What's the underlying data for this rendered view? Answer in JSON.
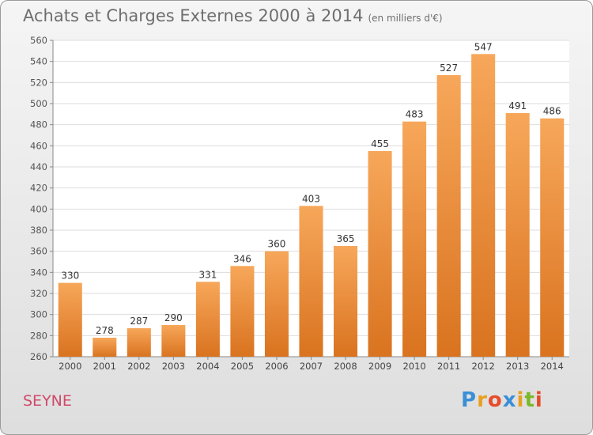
{
  "chart_data": {
    "type": "bar",
    "title": "Achats et Charges Externes 2000 à 2014",
    "subtitle": "(en milliers d'€)",
    "categories": [
      "2000",
      "2001",
      "2002",
      "2003",
      "2004",
      "2005",
      "2006",
      "2007",
      "2008",
      "2009",
      "2010",
      "2011",
      "2012",
      "2013",
      "2014"
    ],
    "values": [
      330,
      278,
      287,
      290,
      331,
      346,
      360,
      403,
      365,
      455,
      483,
      527,
      547,
      491,
      486
    ],
    "ylim": [
      260,
      560
    ],
    "yticks": [
      260,
      280,
      300,
      320,
      340,
      360,
      380,
      400,
      420,
      440,
      460,
      480,
      500,
      520,
      540,
      560
    ],
    "xlabel": "",
    "ylabel": "",
    "grid": true,
    "bar_color": "#f0902f"
  },
  "place": "SEYNE",
  "logo": {
    "letters": [
      "P",
      "r",
      "o",
      "x",
      "i",
      "t",
      "i"
    ],
    "colors": [
      "#3a8fd6",
      "#e8a020",
      "#e84b2a",
      "#3a8fd6",
      "#e8a020",
      "#7cb82a",
      "#e84b2a"
    ]
  }
}
